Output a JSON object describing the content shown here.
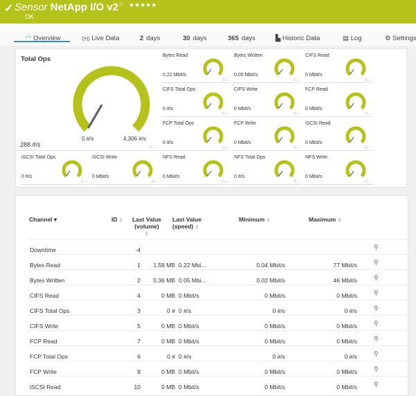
{
  "header": {
    "title_prefix": "Sensor",
    "title": "NetApp I/O v2",
    "status": "OK",
    "stars": "★★★★★",
    "color": "#b5c21a"
  },
  "tabs": [
    {
      "label": "Overview",
      "icon": "gauge-icon"
    },
    {
      "label": "Live Data",
      "icon": "broadcast-icon"
    },
    {
      "num": "2",
      "label": "days"
    },
    {
      "num": "30",
      "label": "days"
    },
    {
      "num": "365",
      "label": "days"
    },
    {
      "label": "Historic Data",
      "icon": "chart-icon"
    },
    {
      "label": "Log",
      "icon": "list-icon"
    },
    {
      "label": "Settings",
      "icon": "gear-icon"
    }
  ],
  "main_gauge": {
    "name": "Total Ops",
    "value": "288 #/s",
    "min": "0 #/s",
    "max": "4,306 #/s",
    "fraction": 0.07
  },
  "gauges": [
    {
      "name": "Bytes Read",
      "value": "0.22 Mbit/s"
    },
    {
      "name": "Bytes Written",
      "value": "0.05 Mbit/s"
    },
    {
      "name": "CIFS Read",
      "value": "0 Mbit/s"
    },
    {
      "name": "CIFS Total Ops",
      "value": "0 #/s"
    },
    {
      "name": "CIFS Write",
      "value": "0 Mbit/s"
    },
    {
      "name": "FCP Read",
      "value": "0 Mbit/s"
    },
    {
      "name": "FCP Total Ops",
      "value": "0 #/s"
    },
    {
      "name": "FCP Write",
      "value": "0 Mbit/s"
    },
    {
      "name": "iSCSI Read",
      "value": "0 Mbit/s"
    },
    {
      "name": "iSCSI Total Ops",
      "value": "0 #/s"
    },
    {
      "name": "iSCSI Write",
      "value": "0 Mbit/s"
    },
    {
      "name": "NFS Read",
      "value": "0 Mbit/s"
    },
    {
      "name": "NFS Total Ops",
      "value": "0 #/s"
    },
    {
      "name": "NFS Write",
      "value": "0 Mbit/s"
    }
  ],
  "table": {
    "headers": {
      "channel": "Channel",
      "id": "ID",
      "lv_volume": "Last Value (volume)",
      "lv_speed": "Last Value (speed)",
      "minimum": "Minimum",
      "maximum": "Maximum"
    },
    "rows": [
      [
        "Downtime",
        "-4",
        "",
        "",
        "",
        ""
      ],
      [
        "Bytes Read",
        "1",
        "1.58 MB",
        "0.22 Mbi...",
        "0.04 Mbit/s",
        "77 Mbit/s"
      ],
      [
        "Bytes Written",
        "2",
        "0.36 MB",
        "0.05 Mbi...",
        "0.02 Mbit/s",
        "46 Mbit/s"
      ],
      [
        "CIFS Read",
        "4",
        "0 MB",
        "0 Mbit/s",
        "0 Mbit/s",
        "0 Mbit/s"
      ],
      [
        "CIFS Total Ops",
        "3",
        "0 #",
        "0 #/s",
        "0 #/s",
        "0 #/s"
      ],
      [
        "CIFS Write",
        "5",
        "0 MB",
        "0 Mbit/s",
        "0 Mbit/s",
        "0 Mbit/s"
      ],
      [
        "FCP Read",
        "7",
        "0 MB",
        "0 Mbit/s",
        "0 Mbit/s",
        "0 Mbit/s"
      ],
      [
        "FCP Total Ops",
        "6",
        "0 #",
        "0 #/s",
        "0 #/s",
        "0 #/s"
      ],
      [
        "FCP Write",
        "8",
        "0 MB",
        "0 Mbit/s",
        "0 Mbit/s",
        "0 Mbit/s"
      ],
      [
        "iSCSI Read",
        "10",
        "0 MB",
        "0 Mbit/s",
        "0 Mbit/s",
        "0 Mbit/s"
      ]
    ]
  }
}
